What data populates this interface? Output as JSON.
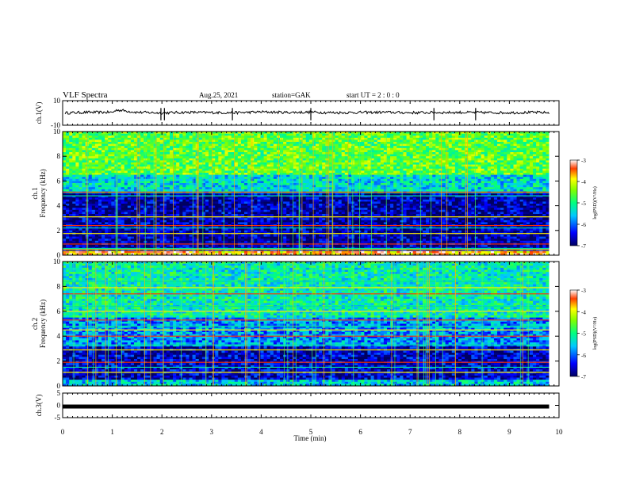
{
  "header": {
    "title": "VLF Spectra",
    "date": "Aug.25, 2021",
    "station": "station=GAK",
    "start": "start  UT =   2 : 0  : 0"
  },
  "chart_data": [
    {
      "id": "ch1-waveform",
      "type": "line",
      "ylabel": "ch.1(V)",
      "ylim": [
        -10,
        10
      ],
      "yticks": [
        "10",
        "-10"
      ],
      "xlim": [
        0,
        10
      ],
      "series": [
        {
          "x": [
            0.05,
            0.5,
            1.0,
            1.1,
            1.5,
            2.0,
            2.5,
            3.0,
            3.5,
            4.0,
            4.5,
            5.0,
            5.5,
            6.0,
            6.5,
            7.0,
            7.5,
            8.0,
            8.5,
            9.0,
            9.5,
            9.8
          ],
          "values": [
            0.0,
            0.5,
            0.5,
            2.5,
            0.5,
            0.0,
            0.5,
            0.3,
            0.2,
            0.8,
            0.4,
            0.6,
            0.2,
            0.4,
            0.5,
            0.2,
            0.3,
            0.4,
            0.3,
            0.2,
            0.4,
            0.2
          ]
        }
      ]
    },
    {
      "id": "ch1-spectrogram",
      "type": "heatmap",
      "ylabel": "ch.1\nFrequency (kHz)",
      "ylim": [
        0,
        10
      ],
      "yticks": [
        "0",
        "2",
        "4",
        "6",
        "8",
        "10"
      ],
      "xlim": [
        0,
        10
      ],
      "data_extent_min": 9.8,
      "colorbar": {
        "label": "log(PSD)(V²/Hz)",
        "range": [
          -7,
          -3
        ],
        "ticks": [
          "-3",
          "-4",
          "-5",
          "-6",
          "-7"
        ]
      },
      "bands": [
        {
          "fmin": 0.0,
          "fmax": 0.3,
          "level": -3.6
        },
        {
          "fmin": 0.3,
          "fmax": 5.0,
          "level": -6.7
        },
        {
          "fmin": 5.0,
          "fmax": 6.5,
          "level": -5.4
        },
        {
          "fmin": 6.5,
          "fmax": 10.0,
          "level": -4.6
        }
      ],
      "lines_khz": [
        0.45,
        0.55,
        0.9,
        1.75,
        2.2,
        2.4,
        3.1,
        4.8,
        5.1
      ]
    },
    {
      "id": "ch2-spectrogram",
      "type": "heatmap",
      "ylabel": "ch.2\nFrequency (kHz)",
      "ylim": [
        0,
        10
      ],
      "yticks": [
        "0",
        "2",
        "4",
        "6",
        "8",
        "10"
      ],
      "xlim": [
        0,
        10
      ],
      "data_extent_min": 9.8,
      "colorbar": {
        "label": "log(PSD)(V²/Hz)",
        "range": [
          -7,
          -3
        ],
        "ticks": [
          "-3",
          "-4",
          "-5",
          "-6",
          "-7"
        ]
      },
      "bands": [
        {
          "fmin": 0.0,
          "fmax": 0.5,
          "level": -5.5
        },
        {
          "fmin": 0.5,
          "fmax": 3.2,
          "level": -6.6
        },
        {
          "fmin": 3.2,
          "fmax": 5.5,
          "level": -5.8
        },
        {
          "fmin": 5.5,
          "fmax": 10.0,
          "level": -5.2
        }
      ],
      "lines_khz": [
        1.1,
        1.5,
        1.9,
        2.9,
        3.3,
        4.0,
        4.5,
        4.8,
        5.3,
        6.0,
        6.4,
        7.4,
        7.9,
        8.4
      ]
    },
    {
      "id": "ch3-waveform",
      "type": "line",
      "ylabel": "ch.3(V)",
      "ylim": [
        -5,
        5
      ],
      "yticks": [
        "5",
        "0",
        "-5"
      ],
      "xlim": [
        0,
        10
      ],
      "series": [
        {
          "x": [
            0,
            9.8
          ],
          "values": [
            -0.5,
            -0.5
          ]
        }
      ]
    }
  ],
  "x_axis": {
    "label": "Time  (min)",
    "ticks": [
      "0",
      "1",
      "2",
      "3",
      "4",
      "5",
      "6",
      "7",
      "8",
      "9",
      "10"
    ]
  }
}
